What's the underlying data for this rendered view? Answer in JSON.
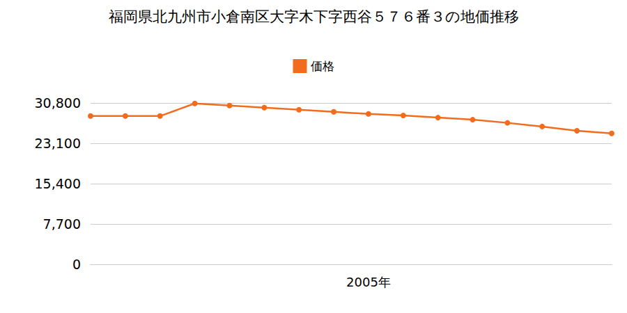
{
  "chart_data": {
    "type": "line",
    "title": "福岡県北九州市小倉南区大字木下字西谷５７６番３の地価推移",
    "categories": [
      null,
      null,
      null,
      null,
      null,
      null,
      null,
      null,
      "2005年",
      null,
      null,
      null,
      null,
      null,
      null,
      null
    ],
    "series": [
      {
        "name": "価格",
        "color": "#f26c1d",
        "marker": "circle",
        "values": [
          28300,
          28300,
          28300,
          30700,
          30300,
          29900,
          29500,
          29100,
          28700,
          28400,
          28000,
          27600,
          27000,
          26300,
          25500,
          25000
        ]
      }
    ],
    "ylim": [
      0,
      30800
    ],
    "yticks": [
      0,
      {
        "value": 7700,
        "label": "7,700"
      },
      {
        "value": 15400,
        "label": "15,400"
      },
      {
        "value": 23100,
        "label": "23,100"
      },
      {
        "value": 30800,
        "label": "30,800"
      }
    ],
    "grid": true,
    "legend": "top"
  }
}
